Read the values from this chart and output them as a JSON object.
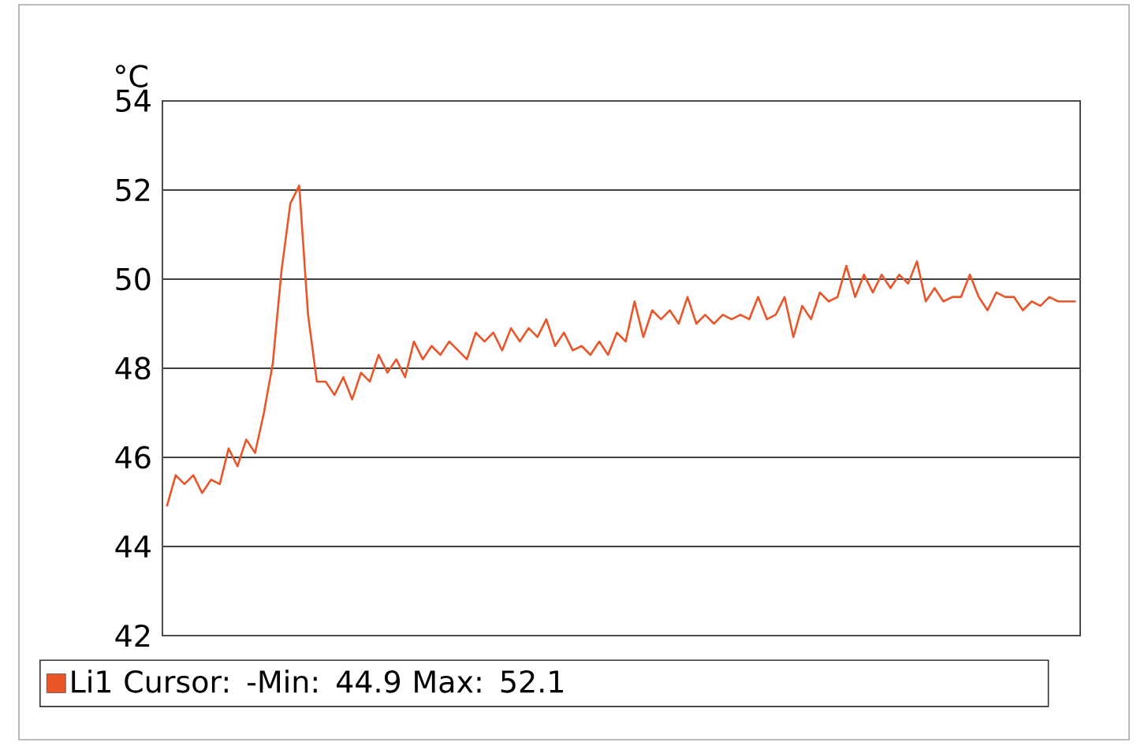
{
  "chart_data": {
    "type": "line",
    "ylabel": "°C",
    "categories": [
      null,
      null,
      null,
      null,
      null,
      null,
      null,
      null,
      null,
      null,
      null,
      null,
      null,
      null,
      null,
      null,
      null,
      null,
      null,
      null,
      null,
      null,
      null,
      null,
      null,
      null,
      null,
      null,
      null,
      null,
      null,
      null,
      null,
      null,
      null,
      null,
      null,
      null,
      null,
      null,
      null,
      null,
      null,
      null,
      null,
      null,
      null,
      null,
      null,
      null,
      null,
      null,
      null,
      null,
      null,
      null,
      null,
      null,
      null,
      null,
      null,
      null,
      null,
      null,
      null,
      null,
      null,
      null,
      null,
      null,
      null,
      null,
      null,
      null,
      null,
      null,
      null,
      null,
      null,
      null,
      null,
      null,
      null,
      null,
      null,
      null,
      null,
      null,
      null,
      null,
      null,
      null,
      null,
      null,
      null,
      null,
      null,
      null,
      null,
      null,
      null,
      null,
      null,
      null
    ],
    "series": [
      {
        "name": "Li1 Cursor: -Min: 44.9 Max: 52.1",
        "color": "#e8562a",
        "values": [
          44.9,
          45.6,
          45.4,
          45.6,
          45.2,
          45.5,
          45.4,
          46.2,
          45.8,
          46.4,
          46.1,
          47.0,
          48.1,
          50.2,
          51.7,
          52.1,
          49.2,
          47.7,
          47.7,
          47.4,
          47.8,
          47.3,
          47.9,
          47.7,
          48.3,
          47.9,
          48.2,
          47.8,
          48.6,
          48.2,
          48.5,
          48.3,
          48.6,
          48.4,
          48.2,
          48.8,
          48.6,
          48.8,
          48.4,
          48.9,
          48.6,
          48.9,
          48.7,
          49.1,
          48.5,
          48.8,
          48.4,
          48.5,
          48.3,
          48.6,
          48.3,
          48.8,
          48.6,
          49.5,
          48.7,
          49.3,
          49.1,
          49.3,
          49.0,
          49.6,
          49.0,
          49.2,
          49.0,
          49.2,
          49.1,
          49.2,
          49.1,
          49.6,
          49.1,
          49.2,
          49.6,
          48.7,
          49.4,
          49.1,
          49.7,
          49.5,
          49.6,
          50.3,
          49.6,
          50.1,
          49.7,
          50.1,
          49.8,
          50.1,
          49.9,
          50.4,
          49.5,
          49.8,
          49.5,
          49.6,
          49.6,
          50.1,
          49.6,
          49.3,
          49.7,
          49.6,
          49.6,
          49.3,
          49.5,
          49.4,
          49.6,
          49.5,
          49.5,
          49.5
        ]
      }
    ],
    "ylim": [
      42,
      54
    ],
    "yticks": [
      42,
      44,
      46,
      48,
      50,
      52,
      54
    ],
    "grid": "y",
    "legend": "bottom",
    "line_style": "solid",
    "marker": "none"
  }
}
